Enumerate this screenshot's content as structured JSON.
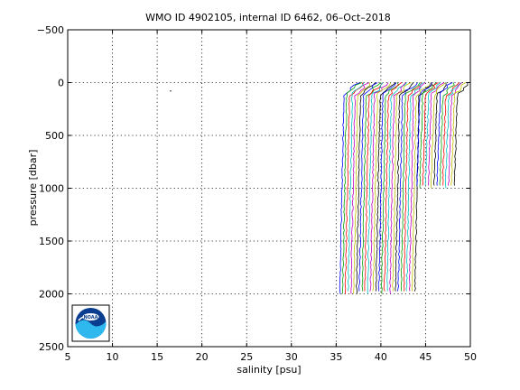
{
  "chart_data": {
    "type": "line",
    "title": "WMO ID 4902105, internal ID 6462, 06–Oct–2018",
    "xlabel": "salinity [psu]",
    "ylabel": "pressure [dbar]",
    "xlim": [
      5,
      50
    ],
    "ylim": [
      -500,
      2500
    ],
    "y_reversed": true,
    "grid": true,
    "x_ticks": [
      5,
      10,
      15,
      20,
      25,
      30,
      35,
      40,
      45,
      50
    ],
    "y_ticks": [
      -500,
      0,
      500,
      1000,
      1500,
      2000,
      2500
    ],
    "x_tick_labels": [
      "5",
      "10",
      "15",
      "20",
      "25",
      "30",
      "35",
      "40",
      "45",
      "50"
    ],
    "y_tick_labels": [
      "−500",
      "0",
      "500",
      "1000",
      "1500",
      "2000",
      "2500"
    ],
    "series_colors": [
      "#0000ff",
      "#00a000",
      "#ff0000",
      "#00c0c0",
      "#c000c0",
      "#c0c000",
      "#000000"
    ],
    "profile_groups": [
      {
        "count": 28,
        "start_x": 35.9,
        "end_x": 44.3,
        "max_depth": 2010,
        "slope": 2.5
      },
      {
        "count": 14,
        "start_x": 44.4,
        "end_x": 48.6,
        "max_depth": 1010,
        "slope": 2.0
      }
    ],
    "stray_points": [
      {
        "x": 16.5,
        "y": 80
      }
    ],
    "logo": "noaa-logo"
  }
}
